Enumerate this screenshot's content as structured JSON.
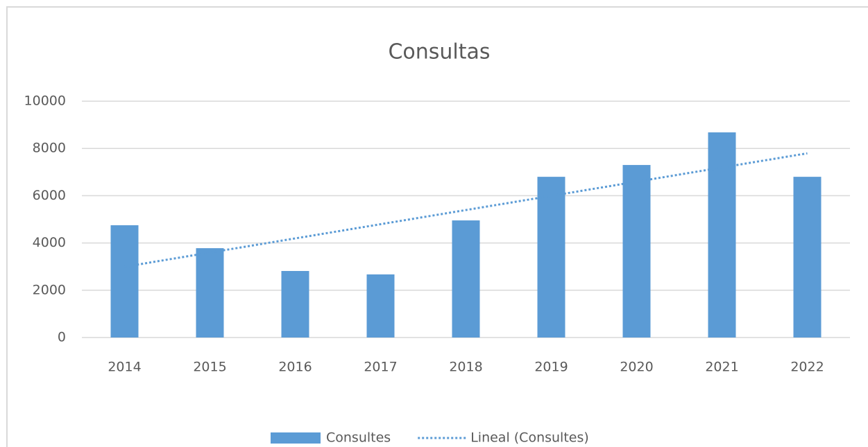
{
  "chart_data": {
    "type": "bar",
    "title": "Consultas",
    "categories": [
      "2014",
      "2015",
      "2016",
      "2017",
      "2018",
      "2019",
      "2020",
      "2021",
      "2022"
    ],
    "series": [
      {
        "name": "Consultes",
        "type": "bar",
        "color": "#5b9bd5",
        "values": [
          4750,
          3780,
          2815,
          2670,
          4955,
          6800,
          7300,
          8680,
          6800
        ]
      },
      {
        "name": "Lineal (Consultes)",
        "type": "line",
        "dash": "dotted",
        "color": "#5b9bd5",
        "values": [
          2994,
          3594,
          4194,
          4794,
          5394,
          5994,
          6594,
          7194,
          7794
        ]
      }
    ],
    "ylim": [
      0,
      10000
    ],
    "yticks": [
      0,
      2000,
      4000,
      6000,
      8000,
      10000
    ],
    "grid": true,
    "legend": "bottom"
  }
}
